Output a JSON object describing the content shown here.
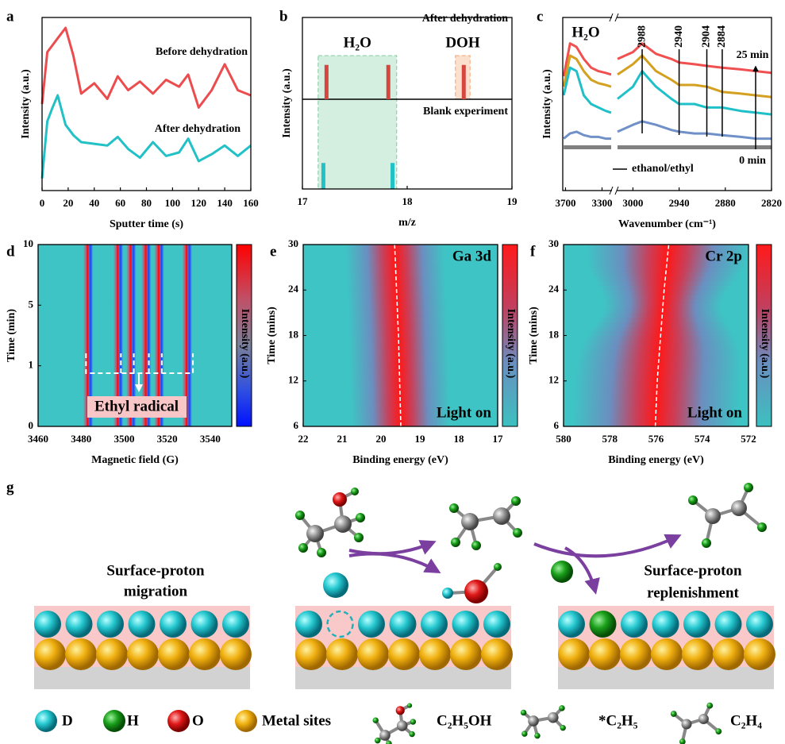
{
  "chart_data": [
    {
      "panel": "a",
      "type": "line",
      "xlabel": "Sputter time (s)",
      "ylabel": "Intensity (a.u.)",
      "xlim": [
        0,
        160
      ],
      "xticks": [
        0,
        20,
        40,
        60,
        80,
        100,
        120,
        140,
        160
      ],
      "ylim": [
        0,
        100
      ],
      "x": [
        0,
        4,
        8,
        12,
        18,
        24,
        30,
        40,
        50,
        58,
        66,
        75,
        85,
        95,
        105,
        112,
        120,
        130,
        140,
        150,
        160
      ],
      "series": [
        {
          "name": "Before dehydration",
          "color": "#ec4c4e",
          "values": [
            50,
            80,
            84,
            88,
            94,
            78,
            56,
            62,
            53,
            66,
            58,
            63,
            56,
            64,
            60,
            67,
            48,
            58,
            73,
            58,
            55
          ]
        },
        {
          "name": "After dehydration",
          "color": "#22c1c6",
          "values": [
            7,
            40,
            48,
            55,
            38,
            32,
            28,
            27,
            26,
            31,
            24,
            19,
            28,
            20,
            22,
            30,
            17,
            21,
            26,
            20,
            26
          ]
        }
      ]
    },
    {
      "panel": "b",
      "type": "bar",
      "xlabel": "m/z",
      "ylabel": "Intensity (a.u.)",
      "xlim": [
        17,
        19
      ],
      "xticks": [
        17,
        18,
        19
      ],
      "ylim": [
        0,
        100
      ],
      "series": [
        {
          "name": "After dehydration",
          "color": "#d6463e",
          "x": [
            17.23,
            17.82,
            18.54
          ],
          "values": [
            42,
            42,
            42
          ]
        },
        {
          "name": "Blank experiment",
          "color": "#22c1c6",
          "x": [
            17.2,
            17.86
          ],
          "values": [
            29,
            29
          ]
        }
      ],
      "regions": [
        {
          "label": "H₂O",
          "range": [
            17.15,
            17.9
          ],
          "color": "#3cb371"
        },
        {
          "label": "DOH",
          "range": [
            18.46,
            18.6
          ],
          "color": "#f07020"
        }
      ]
    },
    {
      "panel": "c",
      "type": "spectrum",
      "xlabel": "Wavenumber (cm⁻¹)",
      "ylabel": "Intensity (a.u.)",
      "xlim": [
        [
          3730,
          3200
        ],
        [
          3020,
          2820
        ]
      ],
      "xticks": [
        [
          3700,
          3300
        ],
        [
          3000,
          2940,
          2880,
          2820
        ]
      ],
      "ylim": [
        0,
        100
      ],
      "x": [
        3720,
        3650,
        3580,
        3500,
        3420,
        3340,
        3260,
        3200,
        3100,
        3020,
        3000,
        2988,
        2970,
        2950,
        2940,
        2920,
        2904,
        2884,
        2860,
        2840,
        2820
      ],
      "series": [
        {
          "color": "#f05050",
          "values": [
            66,
            85,
            83,
            76,
            71,
            69,
            68,
            67,
            null,
            76,
            80,
            85,
            79,
            76,
            74,
            73,
            72,
            71,
            70,
            69,
            68
          ]
        },
        {
          "color": "#d4a020",
          "values": [
            60,
            78,
            76,
            69,
            64,
            62,
            61,
            60,
            null,
            67,
            73,
            78,
            69,
            64,
            61,
            61,
            60,
            57,
            56,
            55,
            54
          ]
        },
        {
          "color": "#20c0c8",
          "values": [
            55,
            71,
            69,
            55,
            50,
            48,
            46,
            45,
            null,
            53,
            60,
            69,
            60,
            53,
            50,
            50,
            48,
            48,
            46,
            45,
            44
          ]
        },
        {
          "color": "#7090c8",
          "values": [
            30,
            33,
            34,
            32,
            31,
            31,
            30,
            30,
            null,
            34,
            38,
            40,
            38,
            35,
            34,
            33,
            33,
            32,
            31,
            30,
            30
          ]
        },
        {
          "name": "ethanol/ethyl",
          "color": "#808080",
          "values": [
            25,
            25,
            25,
            25,
            25,
            25,
            25,
            25,
            null,
            25,
            25,
            25,
            25,
            25,
            25,
            25,
            25,
            25,
            25,
            25,
            25
          ]
        }
      ],
      "peaks": [
        2988,
        2940,
        2904,
        2884
      ],
      "annotations": {
        "species": "H₂O",
        "top": "25 min",
        "bottom": "0 min"
      }
    },
    {
      "panel": "d",
      "type": "heatmap",
      "xlabel": "Magnetic field (G)",
      "ylabel": "Time (min)",
      "xlim": [
        3460,
        3550
      ],
      "xticks": [
        3460,
        3480,
        3500,
        3520,
        3540
      ],
      "y_categories": [
        "0",
        "1",
        "5",
        "10"
      ],
      "peaks": [
        3483,
        3497,
        3503,
        3510,
        3516,
        3529
      ],
      "annotation": "Ethyl radical",
      "colorbar_label": "Intensity (a.u.)"
    },
    {
      "panel": "e",
      "type": "heatmap",
      "xlabel": "Binding energy (eV)",
      "ylabel": "Time (mins)",
      "xlim": [
        22,
        17
      ],
      "xticks": [
        22,
        21,
        20,
        19,
        18,
        17
      ],
      "ylim": [
        6,
        30
      ],
      "yticks": [
        6,
        12,
        18,
        24,
        30
      ],
      "center_line": {
        "time": [
          6,
          12,
          18,
          24,
          30
        ],
        "energy": [
          19.49,
          19.52,
          19.55,
          19.6,
          19.65
        ]
      },
      "annotations": [
        "Ga 3d",
        "Light on"
      ],
      "colorbar_label": "Intensity (a.u.)"
    },
    {
      "panel": "f",
      "type": "heatmap",
      "xlabel": "Binding energy (eV)",
      "ylabel": "Time (mins)",
      "xlim": [
        580,
        572
      ],
      "xticks": [
        580,
        578,
        576,
        574,
        572
      ],
      "ylim": [
        6,
        30
      ],
      "yticks": [
        6,
        12,
        18,
        24,
        30
      ],
      "center_line": {
        "time": [
          6,
          12,
          18,
          24,
          30
        ],
        "energy": [
          576.03,
          575.95,
          575.8,
          575.65,
          575.45
        ]
      },
      "annotations": [
        "Cr 2p",
        "Light on"
      ],
      "colorbar_label": "Intensity (a.u.)"
    }
  ],
  "diagram": {
    "panel": "g",
    "left_label": [
      "Surface-proton",
      "migration"
    ],
    "right_label": [
      "Surface-proton",
      "replenishment"
    ],
    "legend": [
      "D",
      "H",
      "O",
      "Metal sites",
      "C₂H₅OH",
      "*C₂H₅",
      "C₂H₄"
    ]
  }
}
